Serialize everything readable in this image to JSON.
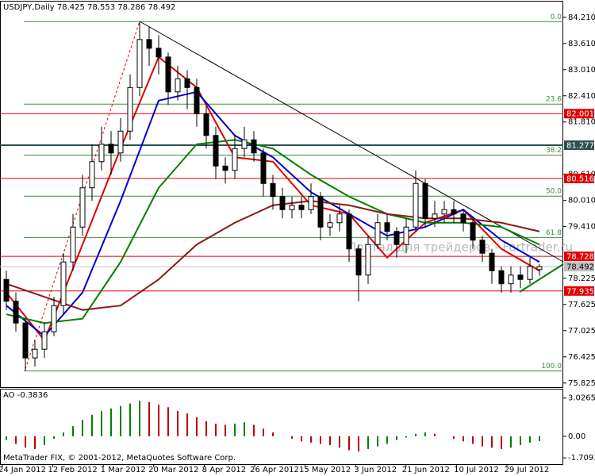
{
  "chart_data": {
    "type": "candlestick",
    "title": "USDJPY,Daily",
    "open": [
      78.2,
      77.7,
      77.2,
      76.4,
      76.6,
      77.0,
      77.6,
      78.6,
      79.4,
      80.3,
      80.9,
      81.3,
      81.1,
      81.6,
      82.6,
      83.7,
      83.5,
      83.3,
      82.5,
      82.8,
      82.6,
      82.0,
      81.5,
      80.8,
      80.7,
      81.2,
      81.4,
      81.1,
      80.4,
      80.1,
      79.8,
      79.9,
      79.8,
      80.1,
      79.4,
      79.5,
      79.7,
      78.9,
      78.3,
      79.0,
      79.5,
      79.3,
      79.0,
      79.4,
      80.4,
      79.6,
      79.7,
      79.8,
      79.7,
      79.5,
      79.1,
      78.8,
      78.4,
      78.1,
      78.3,
      78.2,
      78.425
    ],
    "high": [
      78.4,
      77.9,
      77.3,
      76.8,
      77.2,
      77.8,
      78.8,
      79.7,
      80.6,
      81.3,
      81.7,
      81.6,
      81.9,
      82.9,
      84.1,
      84.0,
      83.8,
      83.4,
      83.1,
      83.0,
      82.8,
      82.2,
      81.7,
      81.0,
      81.5,
      81.7,
      81.6,
      81.2,
      80.6,
      80.3,
      80.1,
      80.1,
      80.4,
      80.2,
      79.7,
      79.9,
      79.8,
      79.0,
      79.2,
      79.7,
      79.7,
      79.4,
      79.6,
      80.7,
      80.5,
      80.0,
      80.0,
      80.0,
      79.8,
      79.6,
      79.2,
      78.9,
      78.5,
      78.5,
      78.5,
      78.7,
      78.553
    ],
    "low": [
      77.5,
      77.0,
      76.1,
      76.2,
      76.4,
      76.9,
      77.4,
      78.4,
      79.2,
      80.0,
      80.7,
      80.6,
      80.9,
      81.4,
      82.4,
      83.1,
      82.9,
      82.2,
      82.3,
      82.1,
      81.7,
      81.2,
      80.5,
      80.4,
      80.5,
      81.0,
      80.9,
      80.1,
      79.8,
      79.6,
      79.6,
      79.6,
      79.7,
      79.1,
      79.2,
      79.3,
      78.6,
      77.7,
      78.1,
      78.9,
      79.1,
      78.7,
      78.8,
      79.3,
      79.4,
      79.4,
      79.5,
      79.5,
      79.3,
      78.9,
      78.6,
      78.1,
      77.9,
      77.9,
      78.0,
      78.1,
      78.286
    ],
    "close": [
      77.7,
      77.2,
      76.4,
      76.6,
      77.0,
      77.6,
      78.6,
      79.4,
      80.3,
      80.9,
      81.3,
      81.1,
      81.6,
      82.6,
      83.7,
      83.5,
      83.3,
      82.5,
      82.8,
      82.6,
      82.0,
      81.5,
      80.8,
      80.7,
      81.2,
      81.4,
      81.1,
      80.4,
      80.1,
      79.8,
      79.9,
      79.8,
      80.1,
      79.4,
      79.5,
      79.7,
      78.9,
      78.3,
      79.0,
      79.5,
      79.3,
      79.0,
      79.4,
      80.4,
      79.6,
      79.7,
      79.8,
      79.7,
      79.5,
      79.1,
      78.8,
      78.4,
      78.1,
      78.3,
      78.2,
      78.5,
      78.492
    ],
    "up_color": "#ffffff",
    "down_color": "#000000",
    "ylim": [
      75.73,
      84.57
    ],
    "yticks": [
      {
        "value": 84.21,
        "label": "84.210"
      },
      {
        "value": 83.61,
        "label": "83.610"
      },
      {
        "value": 83.01,
        "label": "83.010"
      },
      {
        "value": 82.41,
        "label": "82.410"
      },
      {
        "value": 81.81,
        "label": "81.810"
      },
      {
        "value": 80.61,
        "label": "80.610"
      },
      {
        "value": 80.01,
        "label": "80.010"
      },
      {
        "value": 79.41,
        "label": "79.410"
      },
      78.225,
      77.625,
      77.025,
      76.425,
      75.825
    ],
    "xticks": [
      "24 Jan 2012",
      "12 Feb 2012",
      "1 Mar 2012",
      "20 Mar 2012",
      "8 Apr 2012",
      "26 Apr 2012",
      "15 May 2012",
      "3 Jun 2012",
      "21 Jun 2012",
      "10 Jul 2012",
      "29 Jul 2012"
    ],
    "moving_averages": [
      {
        "color": "#e00000",
        "values": [
          77.9,
          76.8,
          79.0,
          81.2,
          83.3,
          82.6,
          81.0,
          80.9,
          79.9,
          79.7,
          78.7,
          79.5,
          79.8,
          78.9,
          78.4
        ]
      },
      {
        "color": "#0000d0",
        "values": [
          77.6,
          76.9,
          77.9,
          80.0,
          82.3,
          82.5,
          81.5,
          81.0,
          80.2,
          79.7,
          79.2,
          79.4,
          79.8,
          79.1,
          78.6
        ]
      },
      {
        "color": "#008000",
        "values": [
          77.4,
          77.2,
          77.3,
          78.6,
          80.3,
          81.3,
          81.4,
          81.2,
          80.6,
          80.1,
          79.7,
          79.5,
          79.5,
          79.4,
          79.0
        ]
      },
      {
        "color": "#8b1a1a",
        "values": [
          78.1,
          77.8,
          77.5,
          77.6,
          78.2,
          79.0,
          79.5,
          79.9,
          80.0,
          79.9,
          79.7,
          79.6,
          79.6,
          79.5,
          79.3
        ]
      }
    ],
    "levels": [
      {
        "value": 82.001,
        "color": "#e00000",
        "text_color": "#ffffff"
      },
      {
        "value": 81.277,
        "color": "#2f4f4f",
        "text_color": "#ffffff"
      },
      {
        "value": 80.516,
        "color": "#e00000",
        "text_color": "#ffffff"
      },
      {
        "value": 78.728,
        "color": "#e00000",
        "text_color": "#ffffff"
      },
      {
        "value": 78.492,
        "color": "#c0c0c0",
        "text_color": "#000000"
      },
      {
        "value": 77.935,
        "color": "#e00000",
        "text_color": "#ffffff"
      }
    ],
    "fibo": {
      "color": "#3c8c3c",
      "levels": [
        {
          "value": 84.11,
          "label": "0.0"
        },
        {
          "value": 82.22,
          "label": "23.6"
        },
        {
          "value": 81.05,
          "label": "38.2"
        },
        {
          "value": 80.11,
          "label": "50.0"
        },
        {
          "value": 79.16,
          "label": "61.8"
        },
        {
          "value": 76.1,
          "label": "100.0"
        }
      ]
    },
    "watermark": "Портал для трейдеров - Fortrader.ru",
    "footer": "MetaTrader FIX, © 2001-2012, MetaQuotes Software Corp.",
    "ao": {
      "name": "AO",
      "values": [
        -0.3,
        -0.6,
        -0.9,
        -1.0,
        -0.7,
        -0.2,
        0.3,
        0.8,
        1.3,
        1.7,
        2.0,
        2.2,
        2.4,
        2.6,
        2.8,
        2.7,
        2.5,
        2.3,
        2.0,
        1.8,
        1.5,
        1.2,
        1.0,
        0.9,
        1.0,
        1.1,
        0.9,
        0.6,
        0.3,
        0.0,
        -0.2,
        -0.4,
        -0.5,
        -0.6,
        -0.7,
        -0.9,
        -1.1,
        -1.2,
        -1.0,
        -0.8,
        -0.6,
        -0.3,
        -0.1,
        0.2,
        0.3,
        0.2,
        0.0,
        -0.2,
        -0.4,
        -0.6,
        -0.8,
        -0.9,
        -1.0,
        -0.9,
        -0.7,
        -0.5,
        -0.3836
      ],
      "up_color": "#008000",
      "down_color": "#c00000",
      "ylim": [
        -2.2,
        3.7
      ],
      "yticks": [
        3.0265,
        {
          "value": 0,
          "label": "0.00"
        },
        -1.7093
      ]
    }
  }
}
